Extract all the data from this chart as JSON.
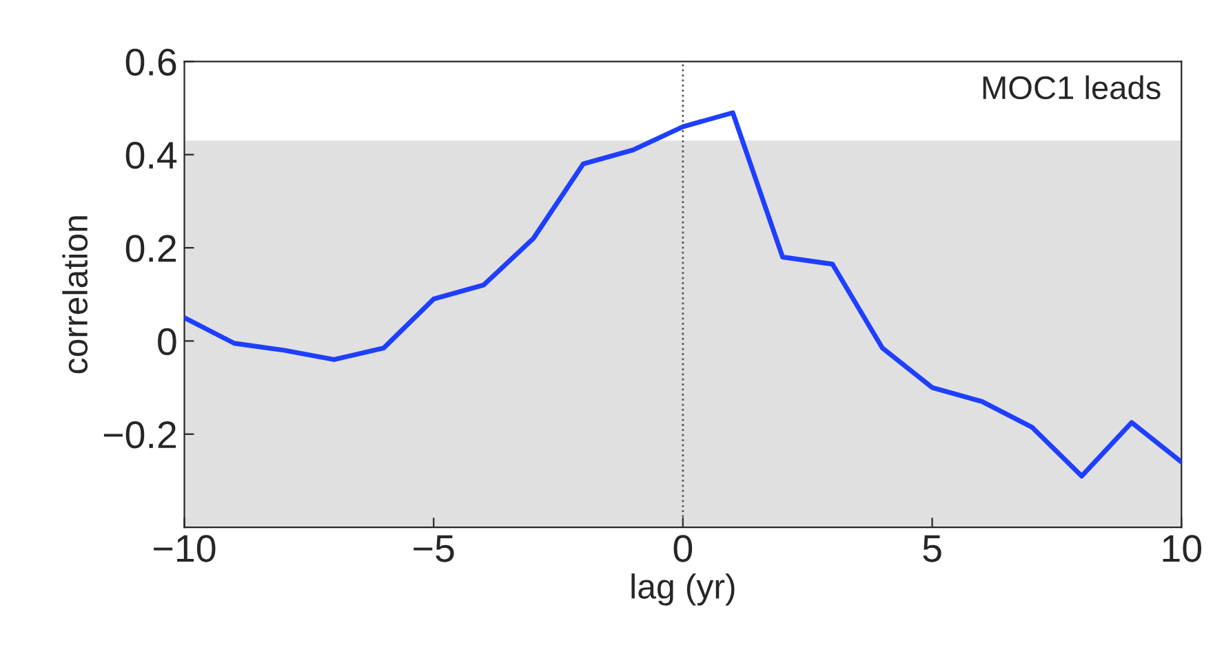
{
  "chart_data": {
    "type": "line",
    "xlabel": "lag (yr)",
    "ylabel": "correlation",
    "x": [
      -10,
      -9,
      -8,
      -7,
      -6,
      -5,
      -4,
      -3,
      -2,
      -1,
      0,
      1,
      2,
      3,
      4,
      5,
      6,
      7,
      8,
      9,
      10
    ],
    "series": [
      {
        "color": "#1f3fff",
        "values": [
          0.05,
          -0.005,
          -0.02,
          -0.04,
          -0.015,
          0.09,
          0.12,
          0.22,
          0.38,
          0.41,
          0.46,
          0.49,
          0.18,
          0.165,
          -0.015,
          -0.1,
          -0.13,
          -0.185,
          -0.29,
          -0.175,
          -0.26
        ]
      }
    ],
    "xlim": [
      -10,
      10
    ],
    "ylim": [
      -0.4,
      0.6
    ],
    "xticks": [
      {
        "value": -10,
        "label": "−10"
      },
      {
        "value": -5,
        "label": "−5"
      },
      0,
      5,
      10
    ],
    "yticks": [
      {
        "value": -0.2,
        "label": "−0.2"
      },
      0,
      0.2,
      0.4,
      0.6
    ],
    "bands": [
      {
        "axis": "y",
        "from": -0.4,
        "to": 0.43,
        "color": "#e0e0e0"
      }
    ],
    "ref_lines": [
      {
        "axis": "x",
        "value": 0,
        "line_style": "dotted",
        "color": "#555555"
      }
    ],
    "annotations": [
      "MOC1 leads"
    ],
    "grid": false,
    "line_style": "solid",
    "marker": "none"
  }
}
